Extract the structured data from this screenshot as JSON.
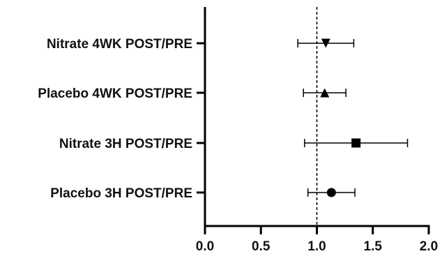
{
  "chart_data": {
    "type": "forest",
    "title": "",
    "xlabel": "",
    "ylabel": "",
    "xlim": [
      0,
      2
    ],
    "x_ticks": [
      "0.0",
      "0.5",
      "1.0",
      "1.5",
      "2.0"
    ],
    "x_tick_values": [
      0,
      0.5,
      1.0,
      1.5,
      2.0
    ],
    "reference_line": 1.0,
    "reference_line_style": "dashed",
    "grid": false,
    "categories": [
      "Nitrate 4WK POST/PRE",
      "Placebo 4WK POST/PRE",
      "Nitrate 3H POST/PRE",
      "Placebo 3H POST/PRE"
    ],
    "points": [
      {
        "label": "Nitrate 4WK POST/PRE",
        "value": 1.08,
        "lower": 0.83,
        "upper": 1.33,
        "marker": "triangle-down"
      },
      {
        "label": "Placebo 4WK POST/PRE",
        "value": 1.07,
        "lower": 0.88,
        "upper": 1.26,
        "marker": "triangle-up"
      },
      {
        "label": "Nitrate 3H POST/PRE",
        "value": 1.35,
        "lower": 0.89,
        "upper": 1.81,
        "marker": "square"
      },
      {
        "label": "Placebo 3H POST/PRE",
        "value": 1.13,
        "lower": 0.92,
        "upper": 1.34,
        "marker": "circle"
      }
    ]
  }
}
